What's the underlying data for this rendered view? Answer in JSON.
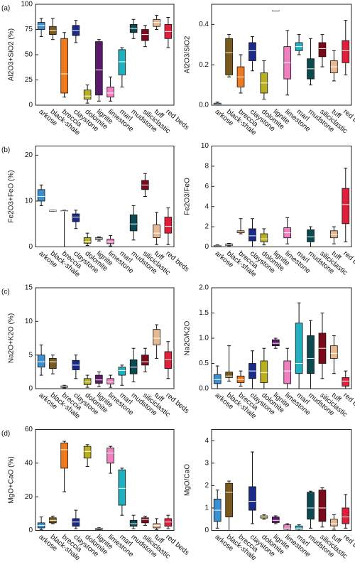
{
  "chart_data": [
    {
      "type": "box",
      "panel_label": "(a)",
      "ylabel": "Al2O3+SiO2 (%)",
      "categories": [
        "arkose",
        "black-shale",
        "breccia",
        "claystone",
        "dolomite",
        "lignite",
        "limestone",
        "marl",
        "mudstone",
        "siliciclastic",
        "tuff",
        "red beds"
      ],
      "colors": [
        "#3a8fd1",
        "#7a5a1a",
        "#f07b1e",
        "#1a2a8a",
        "#b8b020",
        "#5a1a6a",
        "#f080c0",
        "#20b0c0",
        "#0a4a50",
        "#7a0a1a",
        "#e8b890",
        "#e0203a"
      ],
      "ylim": [
        0,
        100
      ],
      "yticks": [
        0,
        25,
        50,
        75,
        100
      ],
      "boxes": [
        {
          "min": 68,
          "q1": 75,
          "median": 79,
          "q3": 82,
          "max": 86
        },
        {
          "min": 65,
          "q1": 70,
          "median": 74,
          "q3": 78,
          "max": 86
        },
        {
          "min": 8,
          "q1": 12,
          "median": 31,
          "q3": 66,
          "max": 72
        },
        {
          "min": 62,
          "q1": 69,
          "median": 74,
          "q3": 79,
          "max": 84
        },
        {
          "min": 2,
          "q1": 6,
          "median": 9,
          "q3": 15,
          "max": 20
        },
        {
          "min": 4,
          "q1": 10,
          "median": 35,
          "q3": 63,
          "max": 65
        },
        {
          "min": 4,
          "q1": 8,
          "median": 12,
          "q3": 18,
          "max": 28
        },
        {
          "min": 18,
          "q1": 30,
          "median": 43,
          "q3": 55,
          "max": 57
        },
        {
          "min": 66,
          "q1": 72,
          "median": 76,
          "q3": 80,
          "max": 85
        },
        {
          "min": 58,
          "q1": 64,
          "median": 70,
          "q3": 75,
          "max": 79
        },
        {
          "min": 75,
          "q1": 78,
          "median": 82,
          "q3": 85,
          "max": 89
        },
        {
          "min": 57,
          "q1": 66,
          "median": 73,
          "q3": 80,
          "max": 87
        }
      ]
    },
    {
      "type": "box",
      "ylabel": "Al2O3/SiO2",
      "categories": [
        "arkose",
        "black-shale",
        "breccia",
        "claystone",
        "dolomite",
        "lignite",
        "limestone",
        "marl",
        "mudstone",
        "siliciclastic",
        "tuff",
        "red beds"
      ],
      "colors": [
        "#3a8fd1",
        "#7a5a1a",
        "#f07b1e",
        "#1a2a8a",
        "#b8b020",
        "#5a1a6a",
        "#f080c0",
        "#20b0c0",
        "#0a4a50",
        "#7a0a1a",
        "#e8b890",
        "#e0203a"
      ],
      "ylim": [
        0,
        0.5
      ],
      "yticks": [
        {
          "value": 0,
          "label": "0.0"
        },
        0.2,
        0.4
      ],
      "boxes": [
        {
          "min": 0,
          "q1": 0.003,
          "median": 0.005,
          "q3": 0.01,
          "max": 0.015
        },
        {
          "min": 0.14,
          "q1": 0.15,
          "median": 0.26,
          "q3": 0.33,
          "max": 0.35
        },
        {
          "min": 0.06,
          "q1": 0.09,
          "median": 0.14,
          "q3": 0.19,
          "max": 0.25
        },
        {
          "min": 0.17,
          "q1": 0.22,
          "median": 0.27,
          "q3": 0.31,
          "max": 0.34
        },
        {
          "min": 0.03,
          "q1": 0.06,
          "median": 0.11,
          "q3": 0.16,
          "max": 0.22
        },
        {
          "min": 0.47,
          "q1": 0.47,
          "median": 0.47,
          "q3": 0.47,
          "max": 0.47
        },
        {
          "min": 0.05,
          "q1": 0.13,
          "median": 0.21,
          "q3": 0.29,
          "max": 0.37
        },
        {
          "min": 0.25,
          "q1": 0.27,
          "median": 0.29,
          "q3": 0.31,
          "max": 0.35
        },
        {
          "min": 0.1,
          "q1": 0.13,
          "median": 0.18,
          "q3": 0.23,
          "max": 0.33
        },
        {
          "min": 0.19,
          "q1": 0.24,
          "median": 0.28,
          "q3": 0.31,
          "max": 0.35
        },
        {
          "min": 0.12,
          "q1": 0.16,
          "median": 0.19,
          "q3": 0.22,
          "max": 0.27
        },
        {
          "min": 0.15,
          "q1": 0.21,
          "median": 0.27,
          "q3": 0.32,
          "max": 0.42
        }
      ]
    },
    {
      "type": "box",
      "panel_label": "(b)",
      "ylabel": "Fe2O3+FeO (%)",
      "categories": [
        "arkose",
        "black-shale",
        "breccia",
        "claystone",
        "dolomite",
        "lignite",
        "limestone",
        "marl",
        "mudstone",
        "siliciclastic",
        "tuff",
        "red beds"
      ],
      "colors": [
        "#3a8fd1",
        "#7a5a1a",
        "#f07b1e",
        "#1a2a8a",
        "#b8b020",
        "#5a1a6a",
        "#f080c0",
        "#20b0c0",
        "#0a4a50",
        "#7a0a1a",
        "#e8b890",
        "#e0203a"
      ],
      "ylim": [
        0,
        22
      ],
      "yticks": [
        0,
        10,
        20
      ],
      "boxes": [
        {
          "min": 9,
          "q1": 10,
          "median": 11,
          "q3": 12.5,
          "max": 13.5
        },
        {
          "min": 7.8,
          "q1": 7.8,
          "median": 7.9,
          "q3": 8,
          "max": 8
        },
        {
          "min": 0,
          "q1": 7.8,
          "median": 7.8,
          "q3": 7.9,
          "max": 8
        },
        {
          "min": 4,
          "q1": 5.5,
          "median": 6.5,
          "q3": 7.2,
          "max": 8
        },
        {
          "min": 0.3,
          "q1": 0.8,
          "median": 1.2,
          "q3": 2,
          "max": 3
        },
        {
          "min": 1.3,
          "q1": 1.6,
          "median": 1.8,
          "q3": 2,
          "max": 2.2
        },
        {
          "min": 0.2,
          "q1": 0.7,
          "median": 1.1,
          "q3": 1.7,
          "max": 2.5
        },
        null,
        {
          "min": 1.5,
          "q1": 3.5,
          "median": 5,
          "q3": 7,
          "max": 9
        },
        {
          "min": 11,
          "q1": 12.5,
          "median": 13.5,
          "q3": 14.5,
          "max": 16
        },
        {
          "min": 0.5,
          "q1": 2,
          "median": 3,
          "q3": 4.8,
          "max": 7.5
        },
        {
          "min": 0.5,
          "q1": 3,
          "median": 4.5,
          "q3": 6.5,
          "max": 8.5
        }
      ]
    },
    {
      "type": "box",
      "ylabel": "Fe2O3/FeO",
      "categories": [
        "arkose",
        "black-shale",
        "breccia",
        "claystone",
        "dolomite",
        "lignite",
        "limestone",
        "marl",
        "mudstone",
        "siliciclastic",
        "tuff",
        "red beds"
      ],
      "colors": [
        "#3a8fd1",
        "#7a5a1a",
        "#f07b1e",
        "#1a2a8a",
        "#b8b020",
        "#5a1a6a",
        "#f080c0",
        "#20b0c0",
        "#0a4a50",
        "#7a0a1a",
        "#e8b890",
        "#e0203a"
      ],
      "ylim": [
        0,
        10
      ],
      "yticks": [
        0,
        2,
        4,
        6,
        8,
        10
      ],
      "boxes": [
        {
          "min": 0,
          "q1": 0.05,
          "median": 0.1,
          "q3": 0.15,
          "max": 0.2
        },
        {
          "min": 0.1,
          "q1": 0.15,
          "median": 0.2,
          "q3": 0.3,
          "max": 0.35
        },
        {
          "min": 1.3,
          "q1": 1.4,
          "median": 1.5,
          "q3": 1.6,
          "max": 2.8
        },
        {
          "min": 0,
          "q1": 0.6,
          "median": 1.1,
          "q3": 1.8,
          "max": 2.8
        },
        {
          "min": 0.2,
          "q1": 0.5,
          "median": 0.8,
          "q3": 1.3,
          "max": 1.8
        },
        null,
        {
          "min": 0.3,
          "q1": 0.9,
          "median": 1.4,
          "q3": 1.9,
          "max": 2.9
        },
        null,
        {
          "min": 0,
          "q1": 0.5,
          "median": 1,
          "q3": 1.7,
          "max": 2
        },
        null,
        {
          "min": 0.3,
          "q1": 0.9,
          "median": 1.2,
          "q3": 1.6,
          "max": 2
        },
        {
          "min": 0.5,
          "q1": 2.3,
          "median": 4.2,
          "q3": 5.8,
          "max": 7.8
        }
      ]
    },
    {
      "type": "box",
      "panel_label": "(c)",
      "ylabel": "Na2O+K2O (%)",
      "categories": [
        "arkose",
        "black-shale",
        "breccia",
        "claystone",
        "dolomite",
        "lignite",
        "limestone",
        "marl",
        "mudstone",
        "siliciclastic",
        "tuff",
        "red beds"
      ],
      "colors": [
        "#3a8fd1",
        "#7a5a1a",
        "#f07b1e",
        "#1a2a8a",
        "#b8b020",
        "#5a1a6a",
        "#f080c0",
        "#20b0c0",
        "#0a4a50",
        "#7a0a1a",
        "#e8b890",
        "#e0203a"
      ],
      "ylim": [
        0,
        15
      ],
      "yticks": [
        0,
        5,
        10,
        15
      ],
      "boxes": [
        {
          "min": 2,
          "q1": 3.2,
          "median": 4,
          "q3": 5,
          "max": 6.5
        },
        {
          "min": 2.2,
          "q1": 3,
          "median": 4,
          "q3": 4.5,
          "max": 5
        },
        {
          "min": 0.1,
          "q1": 0.2,
          "median": 0.3,
          "q3": 0.4,
          "max": 0.5
        },
        {
          "min": 1.5,
          "q1": 2.8,
          "median": 3.5,
          "q3": 4.2,
          "max": 5
        },
        {
          "min": 0.2,
          "q1": 0.6,
          "median": 1,
          "q3": 1.5,
          "max": 2
        },
        {
          "min": 0.3,
          "q1": 0.8,
          "median": 1.3,
          "q3": 2,
          "max": 2.5
        },
        {
          "min": 0.2,
          "q1": 0.7,
          "median": 1,
          "q3": 1.5,
          "max": 2
        },
        {
          "min": 0.5,
          "q1": 2,
          "median": 2.7,
          "q3": 3.2,
          "max": 3.5
        },
        {
          "min": 1,
          "q1": 2.2,
          "median": 3.2,
          "q3": 4.3,
          "max": 6
        },
        {
          "min": 2.5,
          "q1": 3.5,
          "median": 4,
          "q3": 5,
          "max": 6
        },
        {
          "min": 4.5,
          "q1": 6.5,
          "median": 7.5,
          "q3": 8.8,
          "max": 9.5
        },
        {
          "min": 1.5,
          "q1": 3,
          "median": 4.3,
          "q3": 5.5,
          "max": 7
        }
      ]
    },
    {
      "type": "box",
      "ylabel": "Na2O/K2O",
      "categories": [
        "arkose",
        "black-shale",
        "breccia",
        "claystone",
        "dolomite",
        "lignite",
        "limestone",
        "marl",
        "mudstone",
        "siliciclastic",
        "tuff",
        "red beds"
      ],
      "colors": [
        "#3a8fd1",
        "#7a5a1a",
        "#f07b1e",
        "#1a2a8a",
        "#b8b020",
        "#5a1a6a",
        "#f080c0",
        "#20b0c0",
        "#0a4a50",
        "#7a0a1a",
        "#e8b890",
        "#e0203a"
      ],
      "ylim": [
        0,
        2
      ],
      "yticks": [
        {
          "value": 0,
          "label": "0.0"
        },
        0.5,
        {
          "value": 1,
          "label": "1.0"
        },
        1.5,
        {
          "value": 2,
          "label": "2.0"
        }
      ],
      "boxes": [
        {
          "min": 0,
          "q1": 0.1,
          "median": 0.18,
          "q3": 0.28,
          "max": 0.45
        },
        {
          "min": 0.15,
          "q1": 0.22,
          "median": 0.25,
          "q3": 0.33,
          "max": 0.85
        },
        {
          "min": 0.05,
          "q1": 0.12,
          "median": 0.18,
          "q3": 0.25,
          "max": 0.35
        },
        {
          "min": 0,
          "q1": 0.2,
          "median": 0.35,
          "q3": 0.5,
          "max": 0.75
        },
        {
          "min": 0,
          "q1": 0.12,
          "median": 0.32,
          "q3": 0.55,
          "max": 0.8
        },
        {
          "min": 0.8,
          "q1": 0.85,
          "median": 0.9,
          "q3": 0.97,
          "max": 1
        },
        {
          "min": 0,
          "q1": 0.1,
          "median": 0.35,
          "q3": 0.55,
          "max": 0.8
        },
        {
          "min": 0,
          "q1": 0.3,
          "median": 0.5,
          "q3": 1.3,
          "max": 1.7
        },
        {
          "min": 0,
          "q1": 0.3,
          "median": 0.6,
          "q3": 1.05,
          "max": 1.35
        },
        {
          "min": 0.2,
          "q1": 0.5,
          "median": 0.8,
          "q3": 1.1,
          "max": 1.5
        },
        {
          "min": 0.3,
          "q1": 0.6,
          "median": 0.7,
          "q3": 0.85,
          "max": 1.05
        },
        {
          "min": 0,
          "q1": 0.05,
          "median": 0.15,
          "q3": 0.22,
          "max": 0.35
        }
      ]
    },
    {
      "type": "box",
      "panel_label": "(d)",
      "ylabel": "MgO+CaO (%)",
      "categories": [
        "arkose",
        "black-shale",
        "breccia",
        "claystone",
        "dolomite",
        "lignite",
        "limestone",
        "marl",
        "mudstone",
        "siliciclastic",
        "tuff",
        "red beds"
      ],
      "colors": [
        "#3a8fd1",
        "#7a5a1a",
        "#f07b1e",
        "#1a2a8a",
        "#b8b020",
        "#5a1a6a",
        "#f080c0",
        "#20b0c0",
        "#0a4a50",
        "#7a0a1a",
        "#e8b890",
        "#e0203a"
      ],
      "ylim": [
        0,
        60
      ],
      "yticks": [
        0,
        20,
        40,
        60
      ],
      "boxes": [
        {
          "min": 0.5,
          "q1": 1.5,
          "median": 3,
          "q3": 4.5,
          "max": 8
        },
        {
          "min": 4,
          "q1": 4.5,
          "median": 6,
          "q3": 7.5,
          "max": 8.5
        },
        {
          "min": 23,
          "q1": 37,
          "median": 48,
          "q3": 52,
          "max": 53
        },
        {
          "min": 1,
          "q1": 2.5,
          "median": 5,
          "q3": 7,
          "max": 12
        },
        {
          "min": 38,
          "q1": 43,
          "median": 47,
          "q3": 50,
          "max": 51
        },
        {
          "min": 0.3,
          "q1": 0.5,
          "median": 1,
          "q3": 1.3,
          "max": 1.6
        },
        {
          "min": 34,
          "q1": 40,
          "median": 46,
          "q3": 49,
          "max": 50
        },
        {
          "min": 9,
          "q1": 15,
          "median": 25,
          "q3": 36,
          "max": 37
        },
        {
          "min": 1,
          "q1": 2.5,
          "median": 4,
          "q3": 6,
          "max": 9
        },
        {
          "min": 3,
          "q1": 4.5,
          "median": 6.5,
          "q3": 7.5,
          "max": 8.5
        },
        {
          "min": 0.5,
          "q1": 1.5,
          "median": 3,
          "q3": 4,
          "max": 7
        },
        {
          "min": 1,
          "q1": 2.5,
          "median": 5,
          "q3": 7,
          "max": 9
        }
      ]
    },
    {
      "type": "box",
      "ylabel": "MgO/CaO",
      "categories": [
        "arkose",
        "black-shale",
        "breccia",
        "claystone",
        "dolomite",
        "lignite",
        "limestone",
        "marl",
        "mudstone",
        "siliciclastic",
        "tuff",
        "red beds"
      ],
      "colors": [
        "#3a8fd1",
        "#7a5a1a",
        "#f07b1e",
        "#1a2a8a",
        "#b8b020",
        "#5a1a6a",
        "#f080c0",
        "#20b0c0",
        "#0a4a50",
        "#7a0a1a",
        "#e8b890",
        "#e0203a"
      ],
      "ylim": [
        0,
        4.5
      ],
      "yticks": [
        0,
        1,
        2,
        3,
        4
      ],
      "boxes": [
        {
          "min": 0.1,
          "q1": 0.4,
          "median": 0.9,
          "q3": 1.4,
          "max": 1.8
        },
        {
          "min": 0,
          "q1": 0.6,
          "median": 1.7,
          "q3": 2.1,
          "max": 2.2
        },
        null,
        {
          "min": 0.3,
          "q1": 0.9,
          "median": 1.3,
          "q3": 1.95,
          "max": 3.5
        },
        {
          "min": 0.5,
          "q1": 0.55,
          "median": 0.6,
          "q3": 0.65,
          "max": 0.7
        },
        {
          "min": 0.3,
          "q1": 0.35,
          "median": 0.45,
          "q3": 0.6,
          "max": 0.65
        },
        {
          "min": 0,
          "q1": 0.05,
          "median": 0.1,
          "q3": 0.25,
          "max": 0.3
        },
        {
          "min": 0,
          "q1": 0.05,
          "median": 0.1,
          "q3": 0.2,
          "max": 0.25
        },
        {
          "min": 0.1,
          "q1": 0.5,
          "median": 1,
          "q3": 1.7,
          "max": 1.75
        },
        {
          "min": 0.15,
          "q1": 0.4,
          "median": 1,
          "q3": 1.8,
          "max": 1.9
        },
        {
          "min": 0.05,
          "q1": 0.2,
          "median": 0.3,
          "q3": 0.5,
          "max": 0.7
        },
        {
          "min": 0.1,
          "q1": 0.3,
          "median": 0.6,
          "q3": 1,
          "max": 1.6
        }
      ]
    }
  ]
}
